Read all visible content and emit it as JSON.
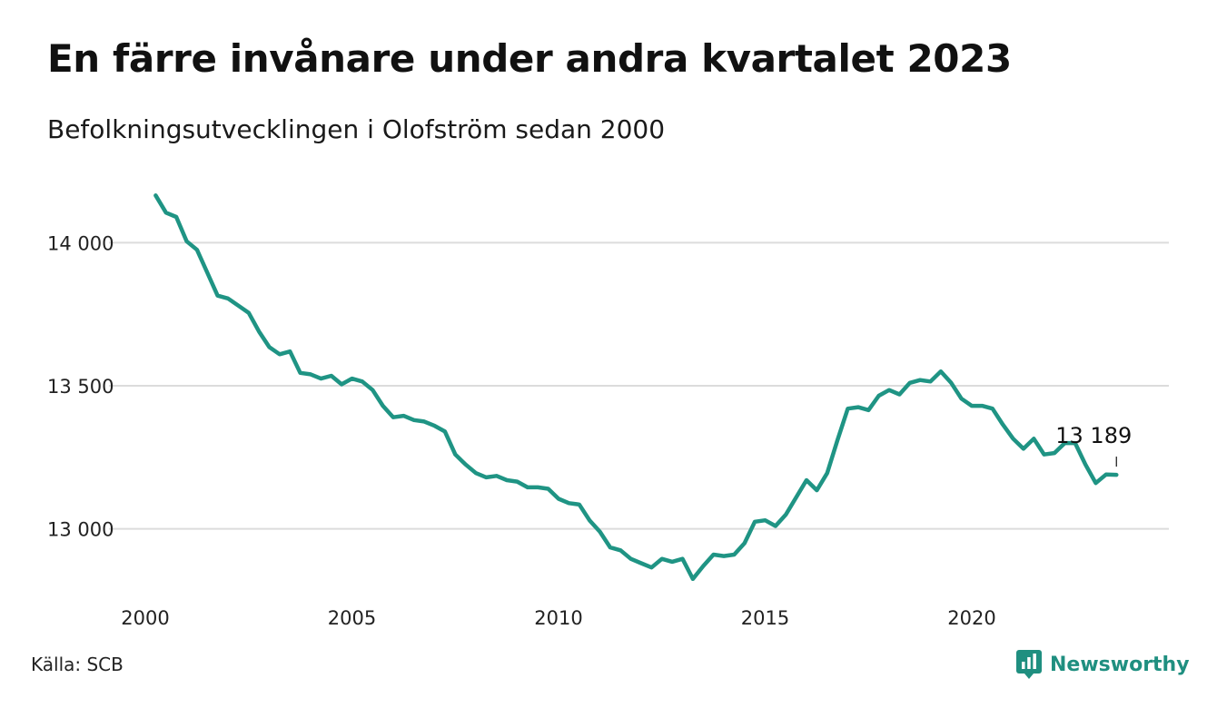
{
  "title": "En färre invånare under andra kvartalet 2023",
  "subtitle": "Befolkningsutvecklingen i Olofström sedan 2000",
  "source": "Källa: SCB",
  "brand": {
    "name": "Newsworthy",
    "icon": "newsworthy-logo-icon",
    "color": "#1f8f80"
  },
  "chart_data": {
    "type": "line",
    "title": "En färre invånare under andra kvartalet 2023",
    "subtitle": "Befolkningsutvecklingen i Olofström sedan 2000",
    "xlabel": "",
    "ylabel": "",
    "xlim": [
      2000,
      2024
    ],
    "ylim": [
      12780,
      14220
    ],
    "x_ticks": [
      2000,
      2005,
      2010,
      2015,
      2020
    ],
    "x_tick_labels": [
      "2000",
      "2005",
      "2010",
      "2015",
      "2020"
    ],
    "y_ticks": [
      13000,
      13500,
      14000
    ],
    "y_tick_labels": [
      "13 000",
      "13 500",
      "14 000"
    ],
    "grid": "horizontal",
    "line_color": "#1f9484",
    "series": [
      {
        "x": [
          2000.25,
          2000.5,
          2000.75,
          2001.0,
          2001.25,
          2001.5,
          2001.75,
          2002.0,
          2002.25,
          2002.5,
          2002.75,
          2003.0,
          2003.25,
          2003.5,
          2003.75,
          2004.0,
          2004.25,
          2004.5,
          2004.75,
          2005.0,
          2005.25,
          2005.5,
          2005.75,
          2006.0,
          2006.25,
          2006.5,
          2006.75,
          2007.0,
          2007.25,
          2007.5,
          2007.75,
          2008.0,
          2008.25,
          2008.5,
          2008.75,
          2009.0,
          2009.25,
          2009.5,
          2009.75,
          2010.0,
          2010.25,
          2010.5,
          2010.75,
          2011.0,
          2011.25,
          2011.5,
          2011.75,
          2012.0,
          2012.25,
          2012.5,
          2012.75,
          2013.0,
          2013.25,
          2013.5,
          2013.75,
          2014.0,
          2014.25,
          2014.5,
          2014.75,
          2015.0,
          2015.25,
          2015.5,
          2015.75,
          2016.0,
          2016.25,
          2016.5,
          2016.75,
          2017.0,
          2017.25,
          2017.5,
          2017.75,
          2018.0,
          2018.25,
          2018.5,
          2018.75,
          2019.0,
          2019.25,
          2019.5,
          2019.75,
          2020.0,
          2020.25,
          2020.5,
          2020.75,
          2021.0,
          2021.25,
          2021.5,
          2021.75,
          2022.0,
          2022.25,
          2022.5,
          2022.75,
          2023.0,
          2023.25,
          2023.5
        ],
        "y": [
          14165,
          14105,
          14090,
          14005,
          13975,
          13895,
          13815,
          13805,
          13780,
          13755,
          13690,
          13635,
          13610,
          13620,
          13545,
          13540,
          13525,
          13535,
          13505,
          13525,
          13515,
          13485,
          13430,
          13390,
          13395,
          13380,
          13375,
          13360,
          13340,
          13260,
          13225,
          13195,
          13180,
          13185,
          13170,
          13165,
          13145,
          13145,
          13140,
          13105,
          13090,
          13085,
          13030,
          12990,
          12935,
          12925,
          12895,
          12880,
          12865,
          12895,
          12885,
          12895,
          12825,
          12870,
          12910,
          12905,
          12910,
          12950,
          13025,
          13030,
          13010,
          13050,
          13110,
          13170,
          13135,
          13195,
          13310,
          13420,
          13425,
          13415,
          13465,
          13485,
          13470,
          13510,
          13520,
          13515,
          13550,
          13510,
          13455,
          13430,
          13430,
          13420,
          13365,
          13315,
          13280,
          13315,
          13260,
          13265,
          13300,
          13300,
          13225,
          13160,
          13190,
          13189
        ]
      }
    ],
    "annotations": [
      {
        "text": "13 189",
        "x": 2023.5,
        "y": 13189
      }
    ]
  }
}
